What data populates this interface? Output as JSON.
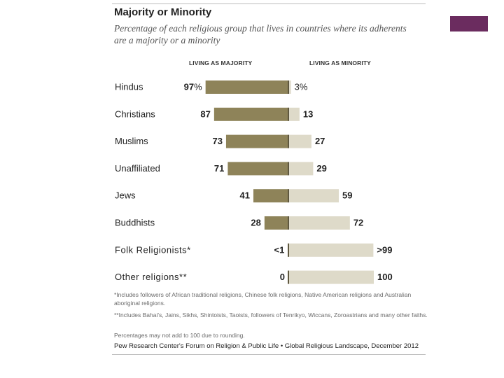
{
  "colors": {
    "majority": "#8e8359",
    "minority": "#dedac9",
    "accent": "#6b2c5f",
    "divider": "#5f5840"
  },
  "header": {
    "title": "Majority or Minority",
    "subtitle": "Percentage of each religious group that lives in countries where its adherents are a majority or a minority"
  },
  "chart_data": {
    "type": "bar",
    "orientation": "horizontal-diverging",
    "title": "Majority or Minority",
    "xlim": [
      0,
      100
    ],
    "column_headers": {
      "majority": "LIVING AS MAJORITY",
      "minority": "LIVING AS MINORITY"
    },
    "categories": [
      "Hindus",
      "Christians",
      "Muslims",
      "Unaffiliated",
      "Jews",
      "Buddhists",
      "Folk Religionists*",
      "Other religions**"
    ],
    "series": [
      {
        "name": "LIVING AS MAJORITY",
        "values": [
          97,
          87,
          73,
          71,
          41,
          28,
          0.5,
          0
        ],
        "labels": [
          "97%",
          "87",
          "73",
          "71",
          "41",
          "28",
          "<1",
          "0"
        ]
      },
      {
        "name": "LIVING AS MINORITY",
        "values": [
          3,
          13,
          27,
          29,
          59,
          72,
          99.5,
          100
        ],
        "labels": [
          "3%",
          "13",
          "27",
          "29",
          "59",
          "72",
          ">99",
          "100"
        ]
      }
    ]
  },
  "notes": [
    "*Includes followers of African traditional religions, Chinese folk religions, Native American religions and Australian aboriginal religions.",
    "**Includes Bahai's, Jains, Sikhs, Shintoists, Taoists, followers of Tenrikyo, Wiccans, Zoroastrians and many other faiths.",
    "Percentages may not add to 100 due to rounding."
  ],
  "source": "Pew Research Center's Forum on Religion & Public Life • Global Religious Landscape, December 2012"
}
